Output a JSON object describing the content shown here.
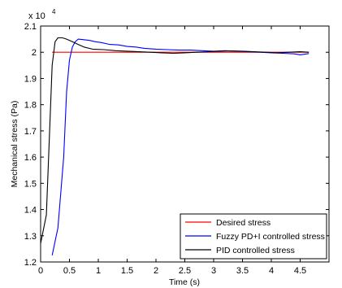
{
  "chart_data": {
    "type": "line",
    "title": "",
    "xlabel": "Time (s)",
    "ylabel": "Mechanical stress (Pa)",
    "y_exponent_label": "x 10",
    "y_exponent_power": "4",
    "xlim": [
      0,
      5
    ],
    "ylim": [
      1.2,
      2.1
    ],
    "y_scale_note": "values shown in units of 10^4 Pa",
    "x_ticks": [
      "0",
      "0.5",
      "1",
      "1.5",
      "2",
      "2.5",
      "3",
      "3.5",
      "4",
      "4.5"
    ],
    "y_ticks": [
      "1.2",
      "1.3",
      "1.4",
      "1.5",
      "1.6",
      "1.7",
      "1.8",
      "1.9",
      "2",
      "2.1"
    ],
    "grid": false,
    "legend_position": "bottom-right",
    "series": [
      {
        "name": "Desired stress",
        "color": "#ff0000",
        "points": [
          [
            0.2,
            2.0
          ],
          [
            4.65,
            2.0
          ]
        ]
      },
      {
        "name": "Fuzzy PD+I controlled stress",
        "color": "#0000ff",
        "points": [
          [
            0.2,
            1.225
          ],
          [
            0.3,
            1.33
          ],
          [
            0.4,
            1.6
          ],
          [
            0.45,
            1.85
          ],
          [
            0.5,
            1.97
          ],
          [
            0.55,
            2.02
          ],
          [
            0.6,
            2.04
          ],
          [
            0.65,
            2.05
          ],
          [
            0.75,
            2.048
          ],
          [
            0.85,
            2.045
          ],
          [
            0.95,
            2.04
          ],
          [
            1.05,
            2.037
          ],
          [
            1.2,
            2.03
          ],
          [
            1.35,
            2.028
          ],
          [
            1.5,
            2.022
          ],
          [
            1.65,
            2.02
          ],
          [
            1.8,
            2.015
          ],
          [
            2.0,
            2.012
          ],
          [
            2.2,
            2.01
          ],
          [
            2.4,
            2.008
          ],
          [
            2.6,
            2.008
          ],
          [
            2.8,
            2.006
          ],
          [
            3.0,
            2.004
          ],
          [
            3.2,
            2.006
          ],
          [
            3.4,
            2.004
          ],
          [
            3.6,
            2.002
          ],
          [
            3.8,
            2.0
          ],
          [
            4.0,
            1.998
          ],
          [
            4.2,
            1.996
          ],
          [
            4.4,
            1.994
          ],
          [
            4.5,
            1.99
          ],
          [
            4.65,
            1.995
          ]
        ]
      },
      {
        "name": "PID controlled stress",
        "color": "#000000",
        "points": [
          [
            0.0,
            1.27
          ],
          [
            0.1,
            1.38
          ],
          [
            0.2,
            1.95
          ],
          [
            0.25,
            2.04
          ],
          [
            0.3,
            2.055
          ],
          [
            0.38,
            2.055
          ],
          [
            0.45,
            2.05
          ],
          [
            0.55,
            2.04
          ],
          [
            0.65,
            2.03
          ],
          [
            0.75,
            2.02
          ],
          [
            0.9,
            2.012
          ],
          [
            1.1,
            2.01
          ],
          [
            1.3,
            2.006
          ],
          [
            1.5,
            2.004
          ],
          [
            1.7,
            2.002
          ],
          [
            1.9,
            2.0
          ],
          [
            2.1,
            1.998
          ],
          [
            2.3,
            1.996
          ],
          [
            2.5,
            1.998
          ],
          [
            2.7,
            2.0
          ],
          [
            2.9,
            2.002
          ],
          [
            3.1,
            2.004
          ],
          [
            3.3,
            2.005
          ],
          [
            3.5,
            2.004
          ],
          [
            3.7,
            2.002
          ],
          [
            3.9,
            2.0
          ],
          [
            4.1,
            1.998
          ],
          [
            4.3,
            2.0
          ],
          [
            4.5,
            2.002
          ],
          [
            4.65,
            2.0
          ]
        ]
      }
    ]
  }
}
